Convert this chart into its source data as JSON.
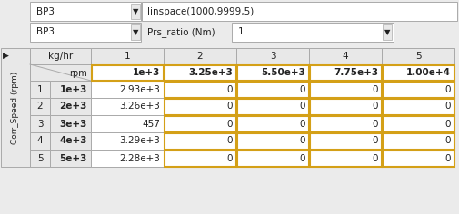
{
  "bg_color": "#ebebeb",
  "white": "#ffffff",
  "border_color": "#aaaaaa",
  "gold_border": "#d4a017",
  "text_color": "#222222",
  "gray_cell": "#e8e8e8",
  "dropdown1_text": "BP3",
  "dropdown1_formula": "linspace(1000,9999,5)",
  "dropdown2_text": "BP3",
  "label_prs": "Prs_ratio (Nm)",
  "dropdown3_text": "1",
  "bp_values": [
    "1e+3",
    "3.25e+3",
    "5.50e+3",
    "7.75e+3",
    "1.00e+4"
  ],
  "row_indices": [
    1,
    2,
    3,
    4,
    5
  ],
  "row_rpm": [
    "1e+3",
    "2e+3",
    "3e+3",
    "4e+3",
    "5e+3"
  ],
  "data_col1": [
    "2.93e+3",
    "3.26e+3",
    "457",
    "3.29e+3",
    "2.28e+3"
  ],
  "ylabel": "Corr_Speed (rpm)"
}
